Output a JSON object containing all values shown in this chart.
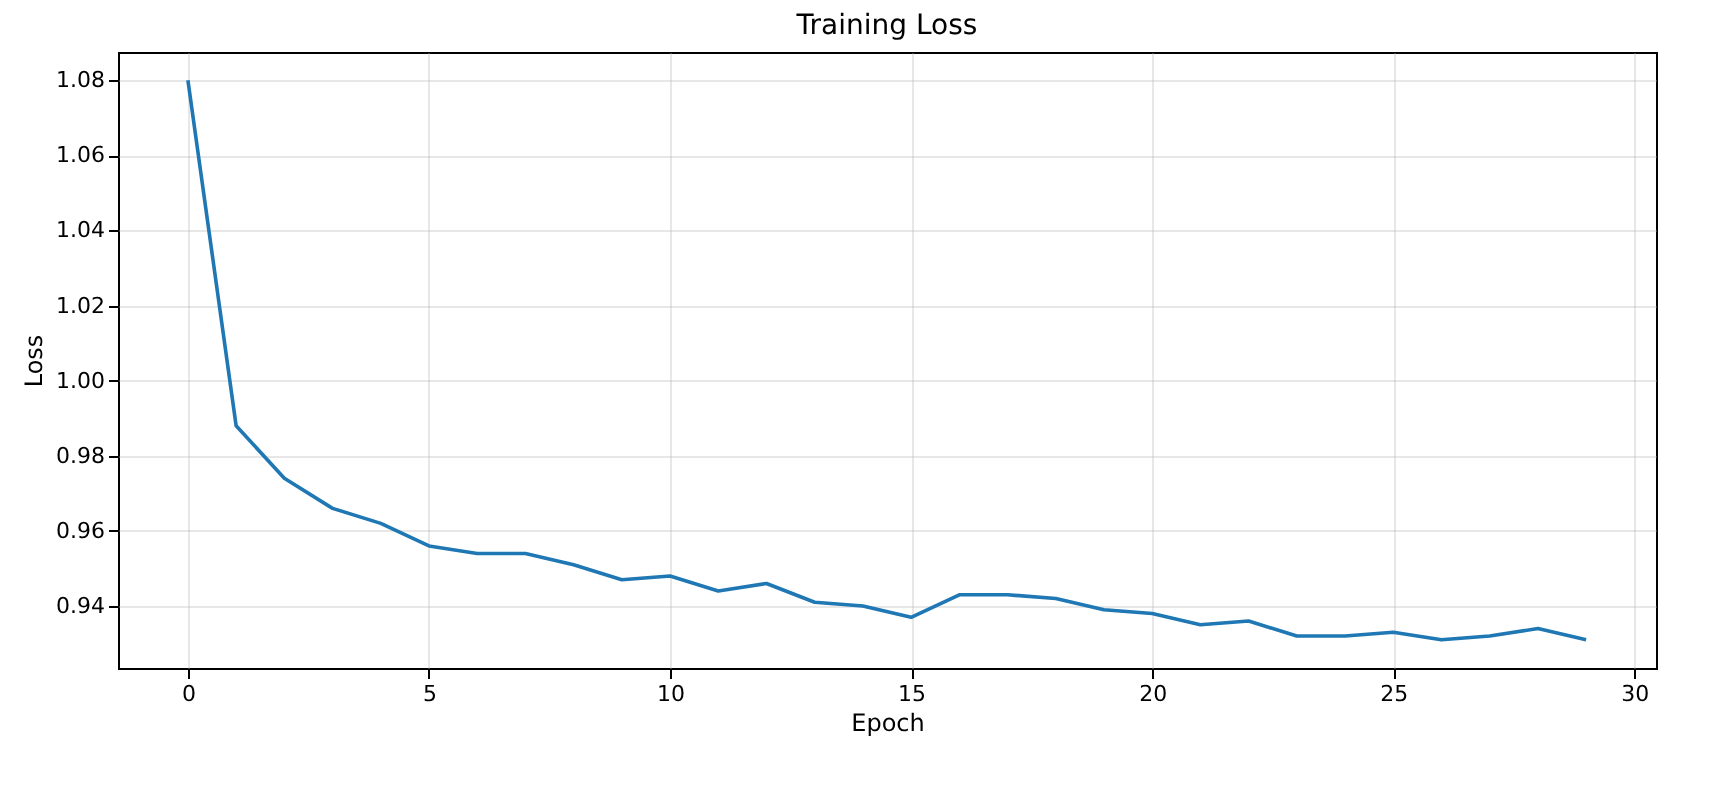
{
  "chart_data": {
    "type": "line",
    "title": "Training Loss",
    "xlabel": "Epoch",
    "ylabel": "Loss",
    "x": [
      0,
      1,
      2,
      3,
      4,
      5,
      6,
      7,
      8,
      9,
      10,
      11,
      12,
      13,
      14,
      15,
      16,
      17,
      18,
      19,
      20,
      21,
      22,
      23,
      24,
      25,
      26,
      27,
      28,
      29
    ],
    "series": [
      {
        "color": "#1f77b4",
        "values": [
          1.08,
          0.988,
          0.974,
          0.966,
          0.962,
          0.956,
          0.954,
          0.954,
          0.951,
          0.947,
          0.948,
          0.944,
          0.946,
          0.941,
          0.94,
          0.937,
          0.943,
          0.943,
          0.942,
          0.939,
          0.938,
          0.935,
          0.936,
          0.932,
          0.932,
          0.933,
          0.931,
          0.932,
          0.934,
          0.931
        ]
      }
    ],
    "xlim": [
      -1.45,
      30.45
    ],
    "xticks": [
      0,
      5,
      10,
      15,
      20,
      25,
      30
    ],
    "ylim": [
      0.9235,
      1.0875
    ],
    "yticks": [
      {
        "value": 0.94,
        "label": "0.94"
      },
      {
        "value": 0.96,
        "label": "0.96"
      },
      {
        "value": 0.98,
        "label": "0.98"
      },
      {
        "value": 1.0,
        "label": "1.00"
      },
      {
        "value": 1.02,
        "label": "1.02"
      },
      {
        "value": 1.04,
        "label": "1.04"
      },
      {
        "value": 1.06,
        "label": "1.06"
      },
      {
        "value": 1.08,
        "label": "1.08"
      }
    ],
    "grid": true,
    "marker": "none",
    "line_style": "solid"
  }
}
